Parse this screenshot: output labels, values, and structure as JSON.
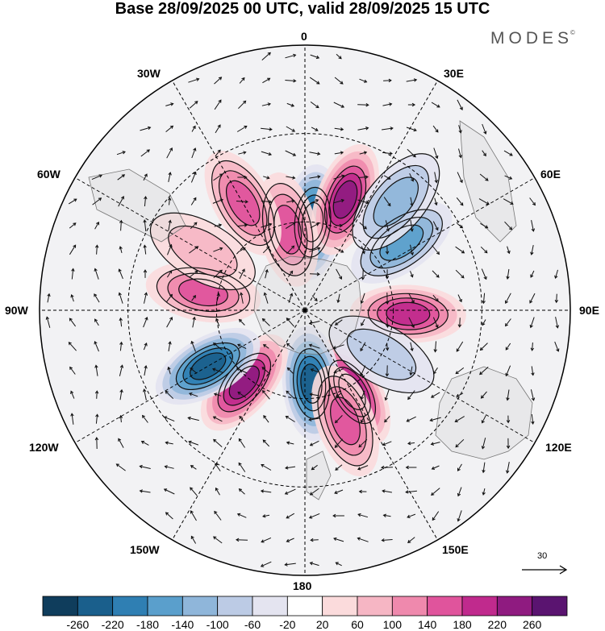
{
  "title": "Base 28/09/2025 00 UTC, valid 28/09/2025 15 UTC",
  "brand": "MODES",
  "brand_mark": "©",
  "longitude_labels": {
    "top": "0",
    "bottom": "180",
    "left": "90W",
    "right": "90E",
    "w30": "30W",
    "e30": "30E",
    "w60": "60W",
    "e60": "60E",
    "w120": "120W",
    "e120": "120E",
    "w150": "150W",
    "e150": "150E"
  },
  "reference_vector": {
    "label": "30"
  },
  "colorbar": {
    "colors": [
      "#0f3d5c",
      "#1a5f8c",
      "#2f7fb3",
      "#5a9fcc",
      "#8fb6da",
      "#bccbe5",
      "#e4e4f0",
      "#ffffff",
      "#fbdbdc",
      "#f6b6c4",
      "#ef89ad",
      "#e0549c",
      "#c02a8d",
      "#8f1b80",
      "#5a1470"
    ],
    "tick_labels": [
      "-260",
      "-220",
      "-180",
      "-140",
      "-100",
      "-60",
      "-20",
      "20",
      "60",
      "100",
      "140",
      "180",
      "220",
      "260"
    ]
  },
  "anomaly_centers": [
    {
      "lat_from_pole": 30,
      "lon": 5,
      "value": -220
    },
    {
      "lat_from_pole": 40,
      "lon": 20,
      "value": 240
    },
    {
      "lat_from_pole": 28,
      "lon": -12,
      "value": 160
    },
    {
      "lat_from_pole": 42,
      "lon": -30,
      "value": 140
    },
    {
      "lat_from_pole": 40,
      "lon": 55,
      "value": -140
    },
    {
      "lat_from_pole": 48,
      "lon": 40,
      "value": -120
    },
    {
      "lat_from_pole": 35,
      "lon": 92,
      "value": 200
    },
    {
      "lat_from_pole": 32,
      "lon": 150,
      "value": 240
    },
    {
      "lat_from_pole": 25,
      "lon": 175,
      "value": -240
    },
    {
      "lat_from_pole": 40,
      "lon": 160,
      "value": 140
    },
    {
      "lat_from_pole": 32,
      "lon": -140,
      "value": 220
    },
    {
      "lat_from_pole": 38,
      "lon": -120,
      "value": -220
    },
    {
      "lat_from_pole": 35,
      "lon": -80,
      "value": 140
    },
    {
      "lat_from_pole": 40,
      "lon": -60,
      "value": 80
    },
    {
      "lat_from_pole": 30,
      "lon": 120,
      "value": -80
    }
  ]
}
